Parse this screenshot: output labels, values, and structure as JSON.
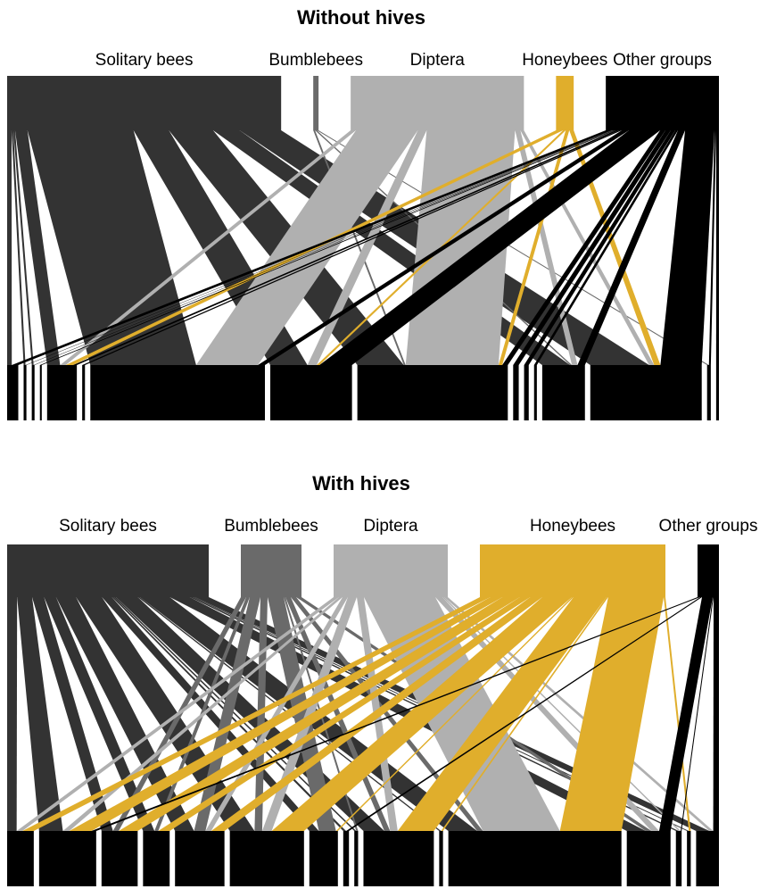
{
  "colors": {
    "Solitary bees": "#333333",
    "Bumblebees": "#6a6a6a",
    "Diptera": "#b0b0b0",
    "Honeybees": "#e0ae2c",
    "Other groups": "#000000",
    "plants": "#000000"
  },
  "panels": [
    {
      "title": "Without hives",
      "groups": [
        {
          "name": "Solitary bees",
          "label": "Solitary bees",
          "size": 310
        },
        {
          "name": "Bumblebees",
          "label": "Bumblebees",
          "size": 6
        },
        {
          "name": "Diptera",
          "label": "Diptera",
          "size": 196
        },
        {
          "name": "Honeybees",
          "label": "Honeybees",
          "size": 20
        },
        {
          "name": "Other groups",
          "label": "Other groups",
          "size": 128
        }
      ],
      "plants": [
        12,
        3,
        3,
        2,
        32,
        3,
        188,
        88,
        162,
        6,
        5,
        3,
        46,
        120,
        4,
        3
      ],
      "links": [
        [
          0,
          0,
          5
        ],
        [
          0,
          1,
          2
        ],
        [
          0,
          2,
          2
        ],
        [
          0,
          4,
          14
        ],
        [
          0,
          6,
          120
        ],
        [
          0,
          7,
          40
        ],
        [
          0,
          8,
          50
        ],
        [
          0,
          12,
          30
        ],
        [
          0,
          13,
          47
        ],
        [
          1,
          8,
          2
        ],
        [
          1,
          12,
          2
        ],
        [
          1,
          14,
          2
        ],
        [
          2,
          4,
          6
        ],
        [
          2,
          6,
          70
        ],
        [
          2,
          7,
          10
        ],
        [
          2,
          8,
          100
        ],
        [
          2,
          12,
          6
        ],
        [
          2,
          13,
          4
        ],
        [
          3,
          4,
          8
        ],
        [
          3,
          7,
          3
        ],
        [
          3,
          8,
          4
        ],
        [
          3,
          13,
          5
        ],
        [
          4,
          0,
          7
        ],
        [
          4,
          1,
          1
        ],
        [
          4,
          2,
          1
        ],
        [
          4,
          3,
          2
        ],
        [
          4,
          4,
          4
        ],
        [
          4,
          5,
          3
        ],
        [
          4,
          6,
          8
        ],
        [
          4,
          7,
          35
        ],
        [
          4,
          8,
          6
        ],
        [
          4,
          9,
          6
        ],
        [
          4,
          10,
          5
        ],
        [
          4,
          11,
          3
        ],
        [
          4,
          12,
          8
        ],
        [
          4,
          13,
          33
        ],
        [
          4,
          14,
          2
        ],
        [
          4,
          15,
          3
        ]
      ]
    },
    {
      "title": "With hives",
      "groups": [
        {
          "name": "Solitary bees",
          "label": "Solitary bees",
          "size": 226
        },
        {
          "name": "Bumblebees",
          "label": "Bumblebees",
          "size": 68
        },
        {
          "name": "Diptera",
          "label": "Diptera",
          "size": 128
        },
        {
          "name": "Honeybees",
          "label": "Honeybees",
          "size": 208
        },
        {
          "name": "Other groups",
          "label": "Other groups",
          "size": 24
        }
      ],
      "plants": [
        28,
        60,
        38,
        28,
        52,
        78,
        30,
        6,
        4,
        74,
        4,
        182,
        46,
        6,
        4,
        24
      ],
      "links": [
        [
          0,
          0,
          10
        ],
        [
          0,
          1,
          15
        ],
        [
          0,
          2,
          12
        ],
        [
          0,
          3,
          12
        ],
        [
          0,
          4,
          20
        ],
        [
          0,
          5,
          26
        ],
        [
          0,
          6,
          10
        ],
        [
          0,
          7,
          2
        ],
        [
          0,
          9,
          22
        ],
        [
          0,
          11,
          30
        ],
        [
          0,
          12,
          20
        ],
        [
          0,
          13,
          3
        ],
        [
          0,
          14,
          2
        ],
        [
          0,
          15,
          14
        ],
        [
          0,
          10,
          2
        ],
        [
          0,
          8,
          2
        ],
        [
          1,
          2,
          6
        ],
        [
          1,
          3,
          4
        ],
        [
          1,
          4,
          12
        ],
        [
          1,
          5,
          8
        ],
        [
          1,
          6,
          18
        ],
        [
          1,
          9,
          6
        ],
        [
          1,
          11,
          6
        ],
        [
          1,
          12,
          6
        ],
        [
          1,
          8,
          2
        ],
        [
          2,
          0,
          6
        ],
        [
          2,
          1,
          4
        ],
        [
          2,
          4,
          6
        ],
        [
          2,
          5,
          10
        ],
        [
          2,
          9,
          8
        ],
        [
          2,
          11,
          80
        ],
        [
          2,
          12,
          8
        ],
        [
          2,
          13,
          2
        ],
        [
          2,
          15,
          4
        ],
        [
          3,
          0,
          12
        ],
        [
          3,
          1,
          14
        ],
        [
          3,
          2,
          20
        ],
        [
          3,
          3,
          12
        ],
        [
          3,
          4,
          14
        ],
        [
          3,
          5,
          34
        ],
        [
          3,
          9,
          38
        ],
        [
          3,
          11,
          64
        ],
        [
          3,
          6,
          2
        ],
        [
          3,
          10,
          2
        ],
        [
          3,
          14,
          2
        ],
        [
          4,
          1,
          3
        ],
        [
          4,
          12,
          12
        ],
        [
          4,
          15,
          6
        ],
        [
          4,
          13,
          1
        ],
        [
          4,
          7,
          2
        ]
      ]
    }
  ]
}
